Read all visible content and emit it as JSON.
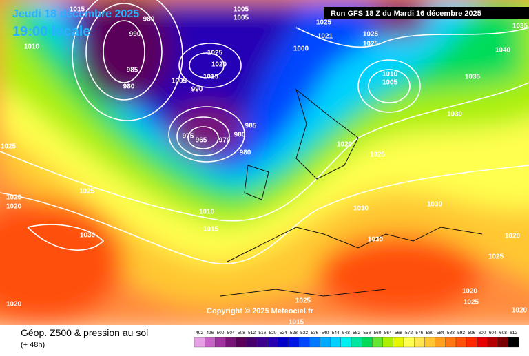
{
  "header": {
    "date": "Jeudi 18 décembre 2025",
    "time": "19:00 locale",
    "run": "Run GFS 18 Z du Mardi 16 décembre 2025"
  },
  "map": {
    "isobar_labels": [
      1015,
      980,
      990,
      1010,
      985,
      980,
      1005,
      1005,
      1025,
      1021,
      1025,
      1025,
      1035,
      1040,
      1000,
      1025,
      1020,
      1015,
      1005,
      990,
      1010,
      1005,
      1035,
      1030,
      985,
      975,
      965,
      970,
      980,
      980,
      1020,
      1025,
      1025,
      1025,
      1020,
      1020,
      1010,
      1015,
      1030,
      1030,
      1030,
      1030,
      1020,
      1025,
      1020,
      1025,
      1025,
      1020,
      1020,
      1015
    ],
    "copyright": "Copyright © 2025 Meteociel.fr"
  },
  "legend": {
    "title": "Géop. Z500 & pression au sol",
    "lead": "(+ 48h)",
    "ticks": [
      492,
      496,
      500,
      504,
      508,
      512,
      516,
      520,
      524,
      528,
      532,
      536,
      540,
      544,
      548,
      552,
      556,
      560,
      564,
      568,
      572,
      576,
      580,
      584,
      588,
      592,
      596,
      600,
      604,
      608,
      612
    ],
    "colors": [
      "#e6a0e6",
      "#c864c8",
      "#a032a0",
      "#781478",
      "#5a005a",
      "#46006e",
      "#3c008c",
      "#2800b4",
      "#0000c8",
      "#0014e6",
      "#0046ff",
      "#0078ff",
      "#00aaff",
      "#00d2ff",
      "#00f0f0",
      "#00e6a0",
      "#00dc5a",
      "#64e632",
      "#aaf000",
      "#e6f500",
      "#ffff50",
      "#ffe650",
      "#ffc832",
      "#ffa01e",
      "#ff7814",
      "#ff500a",
      "#ff2800",
      "#e60000",
      "#b40000",
      "#780000",
      "#000000"
    ]
  }
}
